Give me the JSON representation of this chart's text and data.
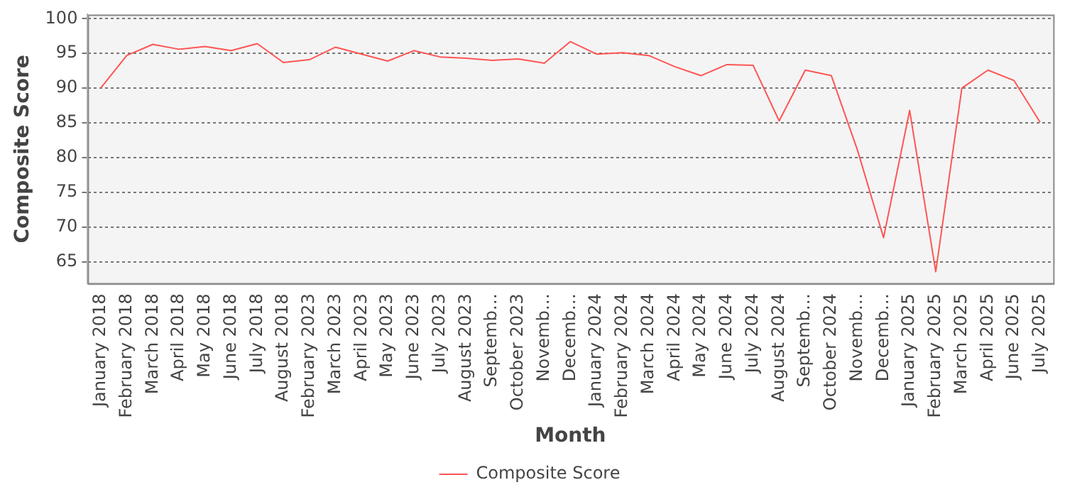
{
  "chart_data": {
    "type": "line",
    "xlabel": "Month",
    "ylabel": "Composite Score",
    "categories": [
      "January 2018",
      "February 2018",
      "March 2018",
      "April 2018",
      "May 2018",
      "June 2018",
      "July 2018",
      "August 2018",
      "February 2023",
      "March 2023",
      "April 2023",
      "May 2023",
      "June 2023",
      "July 2023",
      "August 2023",
      "Septemb…",
      "October 2023",
      "Novemb…",
      "Decemb…",
      "January 2024",
      "February 2024",
      "March 2024",
      "April 2024",
      "May 2024",
      "June 2024",
      "July 2024",
      "August 2024",
      "Septemb…",
      "October 2024",
      "Novemb…",
      "Decemb…",
      "January 2025",
      "February 2025",
      "March 2025",
      "April 2025",
      "June 2025",
      "July 2025"
    ],
    "series": [
      {
        "name": "Composite Score",
        "color": "#ff5555",
        "values": [
          90.0,
          94.7,
          96.3,
          95.6,
          96.0,
          95.4,
          96.4,
          93.7,
          94.1,
          95.9,
          94.9,
          93.9,
          95.4,
          94.5,
          94.3,
          94.0,
          94.2,
          93.6,
          96.7,
          94.9,
          95.1,
          94.7,
          93.1,
          91.8,
          93.4,
          93.3,
          85.3,
          92.6,
          91.8,
          81.1,
          68.5,
          86.8,
          63.6,
          90.0,
          92.6,
          91.1,
          85.1
        ]
      }
    ],
    "ylim": [
      61.9,
      100.6
    ],
    "yticks": [
      65,
      70,
      75,
      80,
      85,
      90,
      95,
      100
    ],
    "grid": "y",
    "legend": "bottom",
    "marker": "none",
    "line_style": "solid"
  }
}
